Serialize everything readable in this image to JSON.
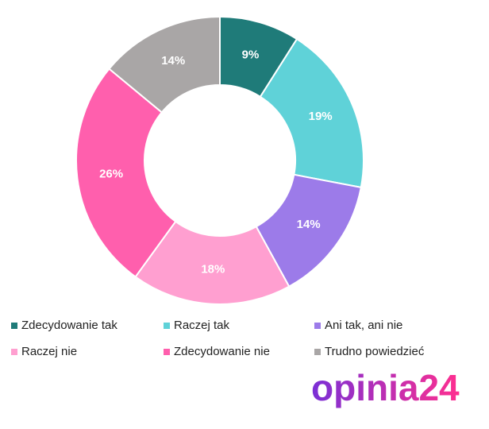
{
  "chart_data": {
    "type": "donut",
    "categories": [
      "Zdecydowanie tak",
      "Raczej tak",
      "Ani tak, ani nie",
      "Raczej nie",
      "Zdecydowanie nie",
      "Trudno powiedzieć"
    ],
    "values": [
      9,
      19,
      14,
      18,
      26,
      14
    ],
    "value_labels": [
      "9%",
      "19%",
      "14%",
      "18%",
      "26%",
      "14%"
    ],
    "colors": [
      "#1f7b79",
      "#5fd2d8",
      "#9c7be9",
      "#ff9fd0",
      "#ff5fad",
      "#a9a6a6"
    ],
    "legend": "bottom"
  },
  "logo": "opinia24"
}
